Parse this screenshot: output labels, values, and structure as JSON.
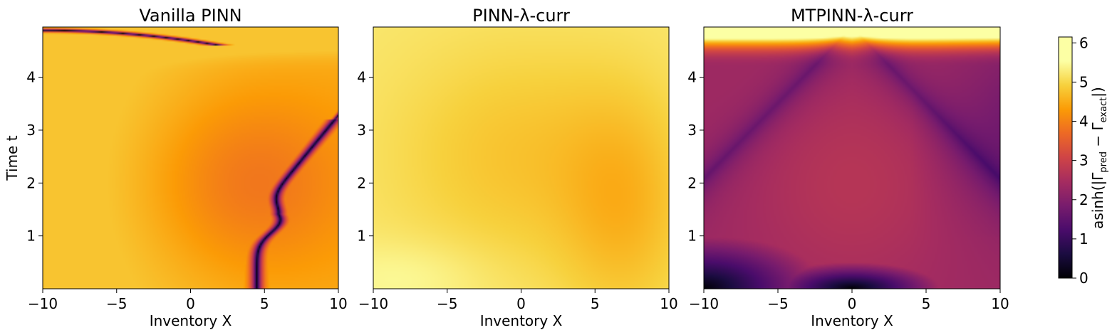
{
  "chart_data": {
    "type": "heatmap",
    "x_ticks": [
      -10,
      -5,
      0,
      5,
      10
    ],
    "y_ticks": [
      1,
      2,
      3,
      4
    ],
    "xlim": [
      -10,
      10
    ],
    "ylim": [
      0,
      4.95
    ],
    "colormap": "inferno",
    "colorbar": {
      "label_base": "asinh(|Γ",
      "label_sub1": "pred",
      "label_mid": " − Γ",
      "label_sub2": "exact",
      "label_end": "|)",
      "range": [
        0,
        6.15
      ],
      "ticks": [
        0,
        1,
        2,
        3,
        4,
        5,
        6
      ]
    },
    "panels": [
      {
        "title": "Vanilla PINN",
        "xlabel": "Inventory X",
        "ylabel": "Time t"
      },
      {
        "title": "PINN-λ-curr",
        "xlabel": "Inventory X",
        "ylabel": ""
      },
      {
        "title": "MTPINN-λ-curr",
        "xlabel": "Inventory X",
        "ylabel": ""
      }
    ]
  }
}
